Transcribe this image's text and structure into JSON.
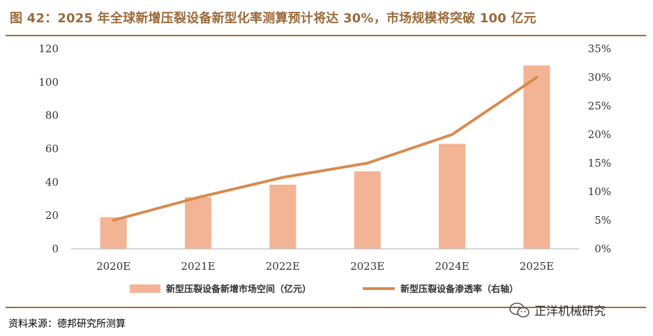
{
  "title": "图 42：2025 年全球新增压裂设备新型化率测算预计将达 30%，市场规模将突破 100 亿元",
  "source": "资料来源：德邦研究所测算",
  "watermark": {
    "text": "正洋机械研究",
    "icon": "wechat-icon"
  },
  "colors": {
    "bar": "#F2B494",
    "line": "#D98A4E",
    "rule": "#9B6A3A"
  },
  "chart_data": {
    "type": "bar",
    "categories": [
      "2020E",
      "2021E",
      "2022E",
      "2023E",
      "2024E",
      "2025E"
    ],
    "series": [
      {
        "name": "新型压裂设备新增市场空间（亿元）",
        "type": "bar",
        "axis": "left",
        "values": [
          19,
          31,
          38.5,
          46.5,
          63,
          110
        ]
      },
      {
        "name": "新型压裂设备渗透率（右轴）",
        "type": "line",
        "axis": "right",
        "values": [
          0.05,
          0.09,
          0.125,
          0.15,
          0.2,
          0.3
        ]
      }
    ],
    "ylim_left": [
      0,
      120
    ],
    "yticks_left": [
      "0",
      "20",
      "40",
      "60",
      "80",
      "100",
      "120"
    ],
    "ylim_right": [
      0,
      0.35
    ],
    "yticks_right": [
      "0%",
      "5%",
      "10%",
      "15%",
      "20%",
      "25%",
      "30%",
      "35%"
    ],
    "grid": false,
    "legend_position": "bottom"
  }
}
